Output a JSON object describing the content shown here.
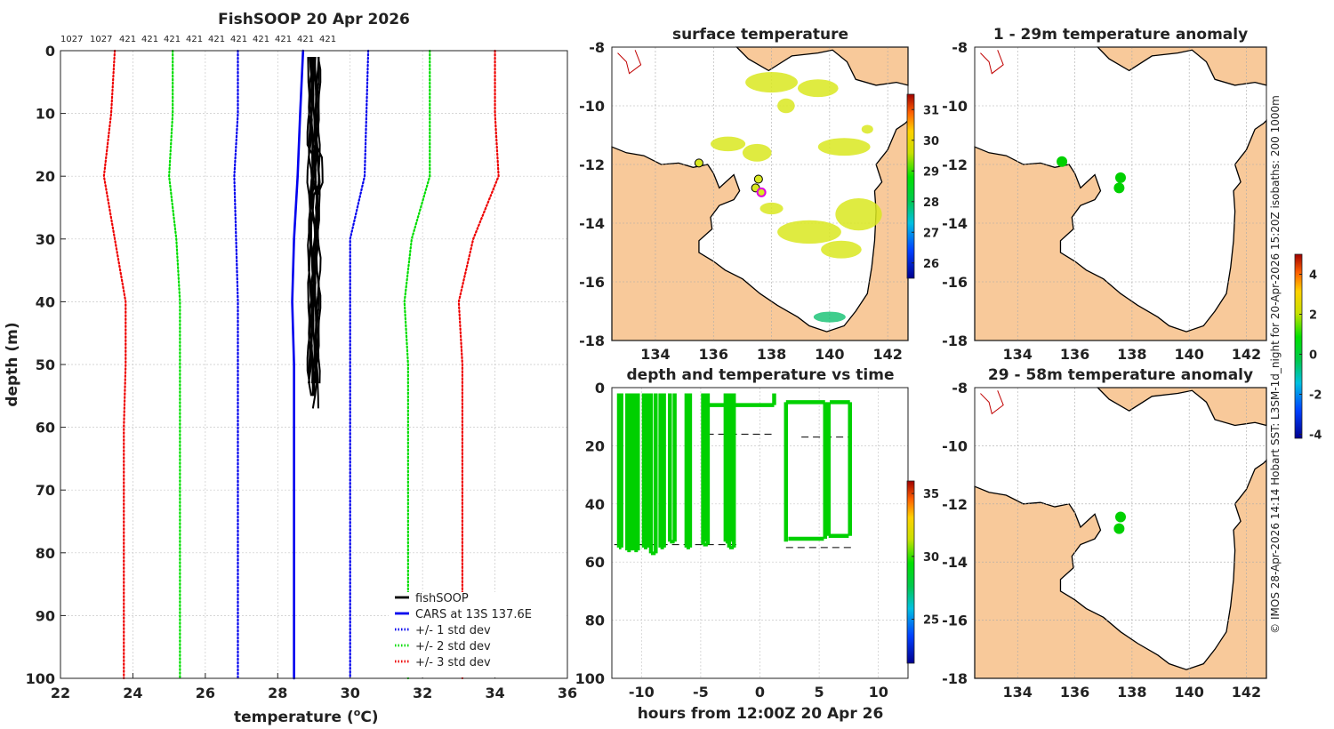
{
  "chart_data": [
    {
      "type": "line",
      "title": "FishSOOP 20 Apr 2026",
      "xlabel": "temperature (",
      "xlabel_unit": "o",
      "xlabel_end": "C)",
      "ylabel": "depth (m)",
      "xlim": [
        22,
        36
      ],
      "ylim": [
        0,
        100
      ],
      "x_ticks": [
        "22",
        "24",
        "26",
        "28",
        "30",
        "32",
        "34",
        "36"
      ],
      "y_ticks": [
        "0",
        "10",
        "20",
        "30",
        "40",
        "50",
        "60",
        "70",
        "80",
        "90",
        "100"
      ],
      "top_counts": [
        "1027",
        "1027",
        "421",
        "421",
        "421",
        "421",
        "421",
        "421",
        "421",
        "421",
        "421",
        "421"
      ],
      "depths": [
        0,
        10,
        20,
        30,
        40,
        50,
        60,
        70,
        80,
        90,
        100
      ],
      "series": [
        {
          "name": "fishSOOP",
          "color": "#000000",
          "style": "solid"
        },
        {
          "name": "CARS at 13S 137.6E",
          "color": "#0000ee",
          "style": "solid",
          "values": [
            28.7,
            28.62,
            28.55,
            28.45,
            28.4,
            28.45,
            28.45,
            28.45,
            28.45,
            28.45,
            28.45
          ]
        },
        {
          "name": "+/- 1 std dev",
          "color": "#0000ee",
          "style": "dotted",
          "lower": [
            26.9,
            26.9,
            26.8,
            26.85,
            26.9,
            26.9,
            26.9,
            26.9,
            26.9,
            26.9,
            26.9
          ],
          "upper": [
            30.5,
            30.45,
            30.4,
            30.0,
            30.0,
            30.0,
            30.0,
            30.0,
            30.0,
            30.0,
            30.0
          ]
        },
        {
          "name": "+/- 2 std dev",
          "color": "#00dd00",
          "style": "dotted",
          "lower": [
            25.1,
            25.1,
            25.0,
            25.2,
            25.3,
            25.3,
            25.3,
            25.3,
            25.3,
            25.3,
            25.3
          ],
          "upper": [
            32.2,
            32.2,
            32.2,
            31.7,
            31.5,
            31.6,
            31.6,
            31.6,
            31.6,
            31.6,
            31.6
          ]
        },
        {
          "name": "+/- 3 std dev",
          "color": "#ee0000",
          "style": "dotted",
          "lower": [
            23.5,
            23.4,
            23.2,
            23.5,
            23.8,
            23.8,
            23.75,
            23.75,
            23.75,
            23.75,
            23.75
          ],
          "upper": [
            34.0,
            34.0,
            34.1,
            33.4,
            33.0,
            33.1,
            33.1,
            33.1,
            33.1,
            33.1,
            33.1
          ]
        }
      ],
      "legend": [
        "fishSOOP",
        "CARS at 13S 137.6E",
        "+/- 1 std dev",
        "+/- 2 std dev",
        "+/- 3 std dev"
      ],
      "legend_position": "bottom-right"
    },
    {
      "type": "scatter",
      "title": "surface temperature",
      "xlim": [
        132.5,
        142.7
      ],
      "ylim": [
        -18,
        -8
      ],
      "x_ticks": [
        "134",
        "136",
        "138",
        "140",
        "142"
      ],
      "y_ticks": [
        "-8",
        "-10",
        "-12",
        "-14",
        "-16",
        "-18"
      ],
      "colorbar": {
        "min": 25.5,
        "max": 31.5,
        "ticks": [
          "26",
          "27",
          "28",
          "29",
          "30",
          "31"
        ]
      },
      "stations": [
        {
          "lon": 135.5,
          "lat": -11.95
        },
        {
          "lon": 137.55,
          "lat": -12.5
        },
        {
          "lon": 137.45,
          "lat": -12.8
        },
        {
          "lon": 137.65,
          "lat": -12.95
        }
      ]
    },
    {
      "type": "scatter",
      "title": "1 - 29m temperature anomaly",
      "xlim": [
        132.5,
        142.7
      ],
      "ylim": [
        -18,
        -8
      ],
      "x_ticks": [
        "134",
        "136",
        "138",
        "140",
        "142"
      ],
      "y_ticks": [
        "-8",
        "-10",
        "-12",
        "-14",
        "-16",
        "-18"
      ],
      "stations": [
        {
          "lon": 135.55,
          "lat": -11.9
        },
        {
          "lon": 137.6,
          "lat": -12.45
        },
        {
          "lon": 137.55,
          "lat": -12.8
        }
      ]
    },
    {
      "type": "scatter",
      "title": "depth and temperature vs time",
      "xlabel": "hours from 12:00Z 20 Apr 26",
      "xlim": [
        -12.5,
        12.5
      ],
      "ylim": [
        0,
        100
      ],
      "x_ticks": [
        "-10",
        "-5",
        "0",
        "5",
        "10"
      ],
      "y_ticks": [
        "0",
        "20",
        "40",
        "60",
        "80",
        "100"
      ],
      "colorbar": {
        "min": 21.5,
        "max": 36,
        "ticks": [
          "25",
          "30",
          "35"
        ]
      },
      "profiles": [
        {
          "start": -11.9,
          "end": -11.7,
          "max_depth": 55
        },
        {
          "start": -11.2,
          "end": -10.9,
          "max_depth": 56
        },
        {
          "start": -10.6,
          "end": -10.3,
          "max_depth": 56
        },
        {
          "start": -9.8,
          "end": -9.5,
          "max_depth": 55
        },
        {
          "start": -9.2,
          "end": -8.8,
          "max_depth": 57
        },
        {
          "start": -8.4,
          "end": -8.1,
          "max_depth": 55
        },
        {
          "start": -7.6,
          "end": -7.2,
          "max_depth": 53
        },
        {
          "start": -6.2,
          "end": -5.9,
          "max_depth": 55
        },
        {
          "start": -4.8,
          "end": -4.4,
          "max_depth": 54
        },
        {
          "start": -2.9,
          "end": -2.6,
          "max_depth": 53
        },
        {
          "start": -2.6,
          "end": -2.2,
          "max_depth": 55
        }
      ],
      "tows": [
        {
          "start": -4.6,
          "end": -2.8,
          "depth": 6
        },
        {
          "start": -2.4,
          "end": 1.2,
          "depth": 6
        },
        {
          "start": 2.2,
          "end": 5.5,
          "depth": 5
        },
        {
          "start": 5.9,
          "end": 7.6,
          "depth": 5
        },
        {
          "start": 2.4,
          "end": 5.4,
          "depth": 52
        },
        {
          "start": 5.8,
          "end": 7.5,
          "depth": 51
        }
      ],
      "bottom_lines": [
        {
          "start": -4.5,
          "end": 1.2,
          "depth": 16
        },
        {
          "start": 3.5,
          "end": 7.6,
          "depth": 17
        },
        {
          "start": -12.3,
          "end": -2.0,
          "depth": 54
        },
        {
          "start": 2.2,
          "end": 7.7,
          "depth": 55
        }
      ]
    },
    {
      "type": "scatter",
      "title": "29 - 58m temperature anomaly",
      "xlim": [
        132.5,
        142.7
      ],
      "ylim": [
        -18,
        -8
      ],
      "x_ticks": [
        "134",
        "136",
        "138",
        "140",
        "142"
      ],
      "y_ticks": [
        "-8",
        "-10",
        "-12",
        "-14",
        "-16",
        "-18"
      ],
      "colorbar": {
        "min": -4.2,
        "max": 5.0,
        "ticks": [
          "4",
          "2",
          "0",
          "-2",
          "-4"
        ]
      },
      "stations": [
        {
          "lon": 137.6,
          "lat": -12.45
        },
        {
          "lon": 137.55,
          "lat": -12.85
        }
      ]
    }
  ],
  "side_caption": "© IMOS 28-Apr-2026 14:14 Hobart SST: L3SM-1d_night for 20-Apr-2026 15:20Z isobaths: 200  1000m",
  "colors": {
    "land": "#f8c99a",
    "coast": "#000000",
    "png_coast": "#c00000",
    "data_green": "#00d000",
    "sst_yellow": "#d9e820",
    "axis": "#222222",
    "grid": "#c8c8c8",
    "highlight": "#e000e0"
  }
}
